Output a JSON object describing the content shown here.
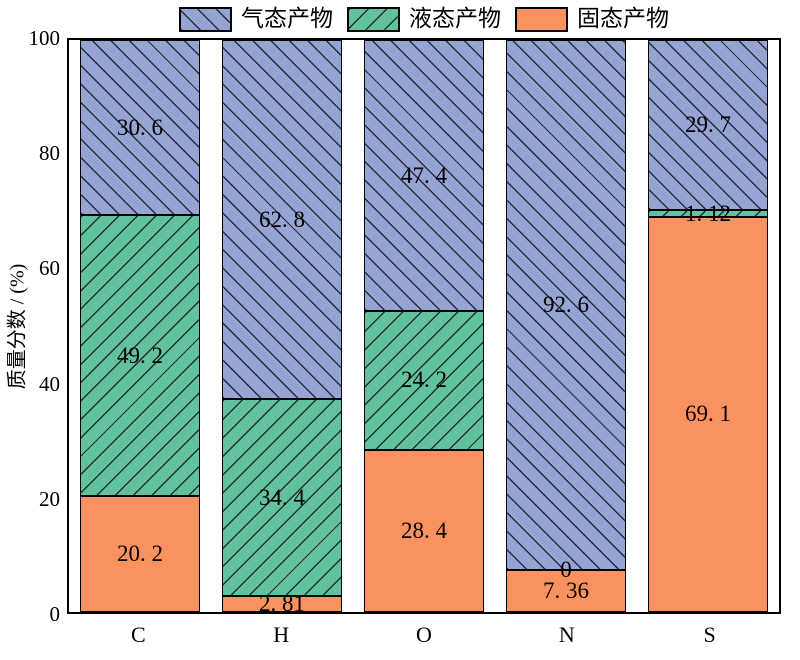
{
  "figure": {
    "background": "#ffffff"
  },
  "chart_data": {
    "type": "bar",
    "subtype": "stacked-vertical",
    "title": "",
    "xlabel": "",
    "ylabel": "质量分数 / (%)",
    "ylim": [
      0,
      100
    ],
    "yticks": [
      0,
      20,
      40,
      60,
      80,
      100
    ],
    "grid": false,
    "categories": [
      "C",
      "H",
      "O",
      "N",
      "S"
    ],
    "series": [
      {
        "name": "固态产物",
        "key": "solid",
        "color": "#F9925E",
        "hatch": "none",
        "values": [
          20.2,
          2.81,
          28.4,
          7.36,
          69.1
        ]
      },
      {
        "name": "液态产物",
        "key": "liquid",
        "color": "#62C29E",
        "hatch": "/",
        "values": [
          49.2,
          34.4,
          24.2,
          0,
          1.12
        ]
      },
      {
        "name": "气态产物",
        "key": "gas",
        "color": "#95A4D2",
        "hatch": "\\",
        "values": [
          30.6,
          62.8,
          47.4,
          92.6,
          29.7
        ]
      }
    ],
    "legend": {
      "position": "top-center",
      "order": [
        "气态产物",
        "液态产物",
        "固态产物"
      ]
    },
    "bar_value_labels_shown": true,
    "hatch_color": "#10101c",
    "edge_color": "#000000"
  }
}
